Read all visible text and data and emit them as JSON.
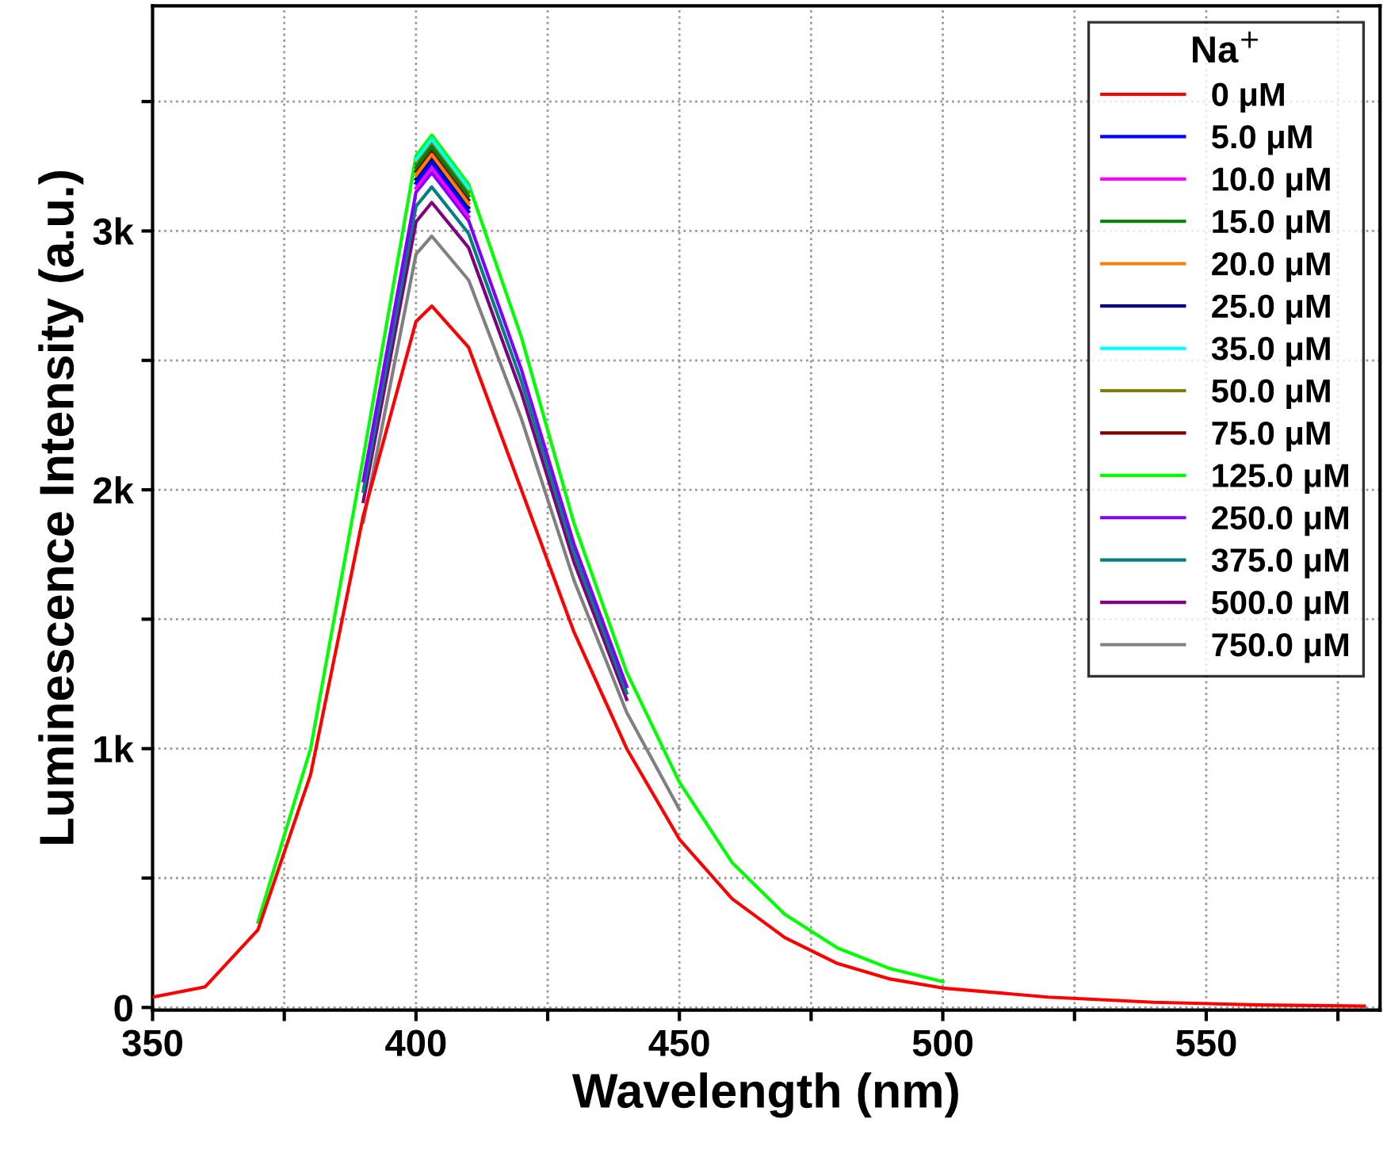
{
  "chart_data": {
    "type": "line",
    "xlabel": "Wavelength (nm)",
    "ylabel": "Luminescence Intensity (a.u.)",
    "legend_title": "Na$^{+}$",
    "legend": "top right",
    "grid": true,
    "line_style": "solid",
    "marker": "none",
    "x": [
      350,
      360,
      370,
      380,
      390,
      400,
      403,
      410,
      420,
      430,
      440,
      450,
      460,
      470,
      480,
      490,
      500,
      520,
      540,
      560,
      580
    ],
    "xlim": [
      350,
      583
    ],
    "xticks": [
      350,
      {
        "value": 375,
        "label": null
      },
      400,
      {
        "value": 425,
        "label": null
      },
      450,
      {
        "value": 475,
        "label": null
      },
      500,
      {
        "value": 525,
        "label": null
      },
      550,
      {
        "value": 575,
        "label": null
      }
    ],
    "ylim": [
      -10,
      3870
    ],
    "yticks": [
      0,
      {
        "value": 500,
        "label": null
      },
      {
        "value": 1000,
        "label": "1k"
      },
      {
        "value": 1500,
        "label": null
      },
      {
        "value": 2000,
        "label": "2k"
      },
      {
        "value": 2500,
        "label": null
      },
      {
        "value": 3000,
        "label": "3k"
      },
      {
        "value": 3500,
        "label": null
      }
    ],
    "series": [
      {
        "name": "0 μM",
        "color": "#ff0000",
        "values": [
          40,
          80,
          300,
          900,
          1900,
          2650,
          2710,
          2550,
          2000,
          1450,
          1000,
          650,
          420,
          270,
          170,
          110,
          75,
          40,
          20,
          10,
          5
        ]
      },
      {
        "name": "5.0 μM",
        "color": "#0000ff",
        "values": [
          null,
          null,
          null,
          null,
          null,
          3185,
          3265,
          3075,
          null,
          null,
          null,
          null,
          null,
          null,
          null,
          null,
          null,
          null,
          null,
          null,
          null
        ]
      },
      {
        "name": "10.0 μM",
        "color": "#ff00ff",
        "values": [
          null,
          null,
          null,
          null,
          null,
          3165,
          3245,
          3055,
          null,
          null,
          null,
          null,
          null,
          null,
          null,
          null,
          null,
          null,
          null,
          null,
          null
        ]
      },
      {
        "name": "15.0 μM",
        "color": "#008000",
        "values": [
          null,
          null,
          null,
          null,
          null,
          3245,
          3325,
          3135,
          null,
          null,
          null,
          null,
          null,
          null,
          null,
          null,
          null,
          null,
          null,
          null,
          null
        ]
      },
      {
        "name": "20.0 μM",
        "color": "#ff8000",
        "values": [
          null,
          null,
          null,
          null,
          null,
          3215,
          3295,
          3105,
          null,
          null,
          null,
          null,
          null,
          null,
          null,
          null,
          null,
          null,
          null,
          null,
          null
        ]
      },
      {
        "name": "25.0 μM",
        "color": "#000080",
        "values": [
          null,
          null,
          null,
          null,
          null,
          3200,
          3280,
          3090,
          null,
          null,
          null,
          null,
          null,
          null,
          null,
          null,
          null,
          null,
          null,
          null,
          null
        ]
      },
      {
        "name": "35.0 μM",
        "color": "#00ffff",
        "values": [
          null,
          null,
          null,
          null,
          null,
          3275,
          3355,
          3165,
          null,
          null,
          null,
          null,
          null,
          null,
          null,
          null,
          null,
          null,
          null,
          null,
          null
        ]
      },
      {
        "name": "50.0 μM",
        "color": "#808000",
        "values": [
          null,
          null,
          null,
          null,
          null,
          3260,
          3340,
          3150,
          null,
          null,
          null,
          null,
          null,
          null,
          null,
          null,
          null,
          null,
          null,
          null,
          null
        ]
      },
      {
        "name": "75.0 μM",
        "color": "#800000",
        "values": [
          null,
          null,
          null,
          null,
          null,
          3230,
          3310,
          3120,
          null,
          null,
          null,
          null,
          null,
          null,
          null,
          null,
          null,
          null,
          null,
          null,
          null
        ]
      },
      {
        "name": "125.0 μM",
        "color": "#00ff00",
        "values": [
          null,
          null,
          330,
          1000,
          2125,
          3290,
          3370,
          3180,
          2590,
          1870,
          1295,
          870,
          560,
          360,
          230,
          150,
          100,
          null,
          null,
          null,
          null
        ]
      },
      {
        "name": "250.0 μM",
        "color": "#8000ff",
        "values": [
          null,
          null,
          null,
          null,
          2035,
          3150,
          3225,
          3040,
          2465,
          1790,
          1240,
          null,
          null,
          null,
          null,
          null,
          null,
          null,
          null,
          null,
          null
        ]
      },
      {
        "name": "375.0 μM",
        "color": "#008080",
        "values": [
          null,
          null,
          null,
          null,
          1995,
          3095,
          3170,
          2990,
          2420,
          1755,
          1215,
          null,
          null,
          null,
          null,
          null,
          null,
          null,
          null,
          null,
          null
        ]
      },
      {
        "name": "500.0 μM",
        "color": "#800080",
        "values": [
          null,
          null,
          null,
          null,
          1955,
          3035,
          3110,
          2935,
          2375,
          1720,
          1190,
          null,
          null,
          null,
          null,
          null,
          null,
          null,
          null,
          null,
          null
        ]
      },
      {
        "name": "750.0 μM",
        "color": "#808080",
        "values": [
          null,
          null,
          null,
          null,
          1875,
          2910,
          2980,
          2810,
          2275,
          1650,
          1140,
          765,
          null,
          null,
          null,
          null,
          null,
          null,
          null,
          null,
          null
        ]
      }
    ]
  }
}
